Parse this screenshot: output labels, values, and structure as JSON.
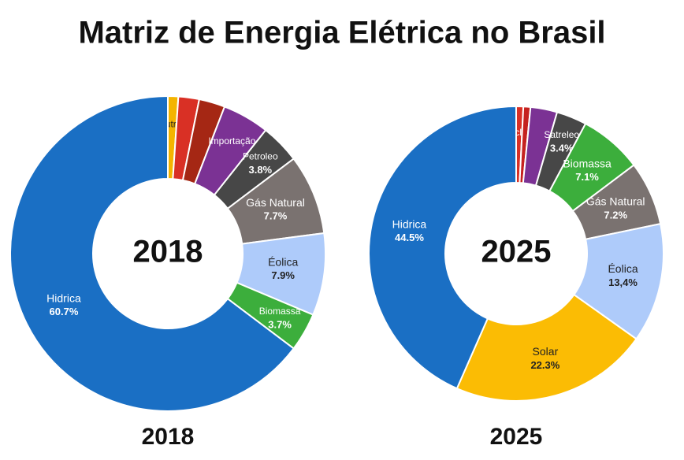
{
  "title": "Matriz de Energia Elétrica no Brasil",
  "chart_data": [
    {
      "type": "donut",
      "center_label": "2018",
      "caption": "2018",
      "categories": [
        "Outros",
        null,
        null,
        "Importação",
        "Petroleo",
        "Gás Natural",
        "Éolica",
        "Biomassa",
        "Hidrica"
      ],
      "values": [
        1,
        2,
        2.5,
        4.5,
        3.8,
        7.7,
        7.9,
        3.7,
        60.7
      ],
      "value_labels": [
        null,
        null,
        null,
        null,
        "3.8%",
        "7.7%",
        "7.9%",
        "3.7%",
        "60.7%"
      ],
      "colors": [
        "#f4b400",
        "#d93025",
        "#a52714",
        "#7b3294",
        "#474747",
        "#7a7270",
        "#aecbfa",
        "#3cae3c",
        "#1a6fc4"
      ]
    },
    {
      "type": "donut",
      "center_label": "2025",
      "caption": "2025",
      "categories": [
        "Nuclear",
        null,
        null,
        "Satreleo",
        "Biomassa",
        "Gás Natural",
        "Éolica",
        "Solar",
        "Hidrica"
      ],
      "values": [
        0.8,
        0.8,
        3,
        3.4,
        7.1,
        7.2,
        13.4,
        22.3,
        44.5
      ],
      "value_labels": [
        null,
        null,
        null,
        "3.4%",
        "7.1%",
        "7.2%",
        "13,4%",
        "22.3%",
        "44.5%"
      ],
      "colors": [
        "#d93025",
        "#c5221f",
        "#7b3294",
        "#474747",
        "#3cae3c",
        "#7a7270",
        "#aecbfa",
        "#fbbc04",
        "#1a6fc4"
      ]
    }
  ]
}
